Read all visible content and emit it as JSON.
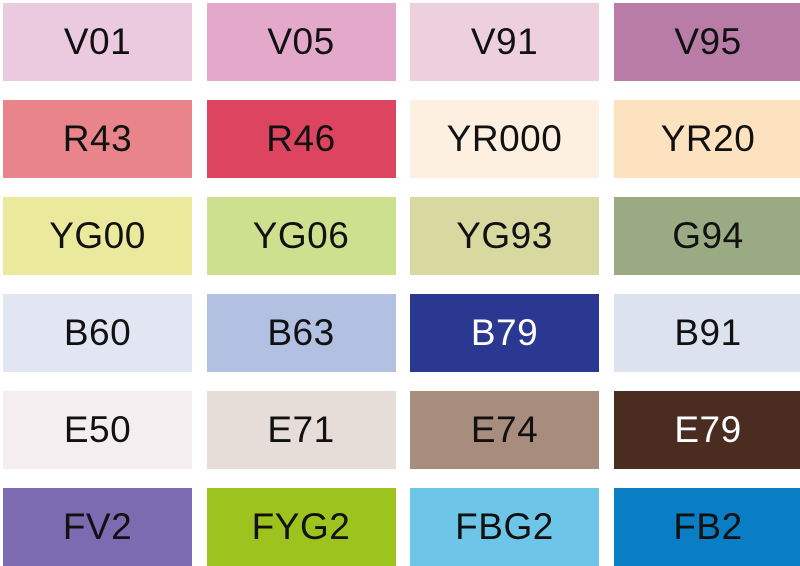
{
  "swatches": [
    {
      "code": "V01",
      "color": "#ebc9df",
      "text_color": "#111111"
    },
    {
      "code": "V05",
      "color": "#e4a8ca",
      "text_color": "#111111"
    },
    {
      "code": "V91",
      "color": "#edd0dc",
      "text_color": "#111111"
    },
    {
      "code": "V95",
      "color": "#b87ca7",
      "text_color": "#111111"
    },
    {
      "code": "R43",
      "color": "#e8848a",
      "text_color": "#111111"
    },
    {
      "code": "R46",
      "color": "#dc445f",
      "text_color": "#111111"
    },
    {
      "code": "YR000",
      "color": "#fdf0e1",
      "text_color": "#111111"
    },
    {
      "code": "YR20",
      "color": "#fde2bf",
      "text_color": "#111111"
    },
    {
      "code": "YG00",
      "color": "#ebe99b",
      "text_color": "#111111"
    },
    {
      "code": "YG06",
      "color": "#cde08d",
      "text_color": "#111111"
    },
    {
      "code": "YG93",
      "color": "#d8d9a0",
      "text_color": "#111111"
    },
    {
      "code": "G94",
      "color": "#9aab84",
      "text_color": "#111111"
    },
    {
      "code": "B60",
      "color": "#e2e6f3",
      "text_color": "#111111"
    },
    {
      "code": "B63",
      "color": "#b2c1e2",
      "text_color": "#111111"
    },
    {
      "code": "B79",
      "color": "#2b3892",
      "text_color": "#ffffff"
    },
    {
      "code": "B91",
      "color": "#dce3ee",
      "text_color": "#111111"
    },
    {
      "code": "E50",
      "color": "#f5eef0",
      "text_color": "#111111"
    },
    {
      "code": "E71",
      "color": "#e6dcd8",
      "text_color": "#111111"
    },
    {
      "code": "E74",
      "color": "#a88d7e",
      "text_color": "#111111"
    },
    {
      "code": "E79",
      "color": "#4a2c21",
      "text_color": "#ffffff"
    },
    {
      "code": "FV2",
      "color": "#7c6bb0",
      "text_color": "#111111"
    },
    {
      "code": "FYG2",
      "color": "#9dc41e",
      "text_color": "#111111"
    },
    {
      "code": "FBG2",
      "color": "#6dc6e7",
      "text_color": "#111111"
    },
    {
      "code": "FB2",
      "color": "#0a7ec5",
      "text_color": "#111111"
    }
  ]
}
